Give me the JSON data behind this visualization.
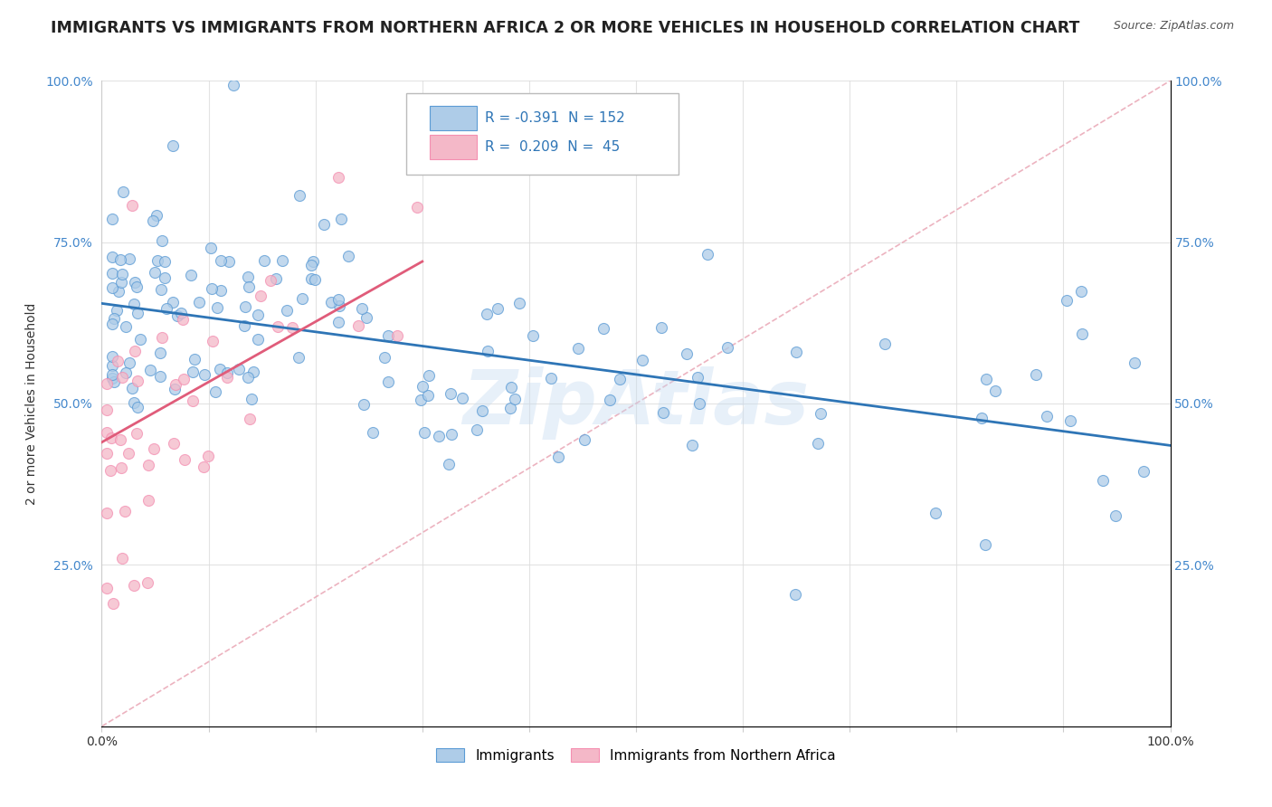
{
  "title": "IMMIGRANTS VS IMMIGRANTS FROM NORTHERN AFRICA 2 OR MORE VEHICLES IN HOUSEHOLD CORRELATION CHART",
  "source": "Source: ZipAtlas.com",
  "ylabel": "2 or more Vehicles in Household",
  "xlim": [
    0,
    1.0
  ],
  "ylim": [
    0,
    1.0
  ],
  "xticks": [
    0.0,
    0.1,
    0.2,
    0.3,
    0.4,
    0.5,
    0.6,
    0.7,
    0.8,
    0.9,
    1.0
  ],
  "xticklabels": [
    "0.0%",
    "",
    "",
    "",
    "",
    "",
    "",
    "",
    "",
    "",
    "100.0%"
  ],
  "yticks": [
    0.0,
    0.25,
    0.5,
    0.75,
    1.0
  ],
  "ylabels_left": [
    "",
    "25.0%",
    "50.0%",
    "75.0%",
    "100.0%"
  ],
  "ylabels_right": [
    "",
    "25.0%",
    "50.0%",
    "75.0%",
    "100.0%"
  ],
  "blue_R": -0.391,
  "blue_N": 152,
  "pink_R": 0.209,
  "pink_N": 45,
  "blue_color": "#aecce8",
  "blue_edge_color": "#5b9bd5",
  "blue_line_color": "#2e75b6",
  "pink_color": "#f4b8c8",
  "pink_edge_color": "#f48fb1",
  "pink_line_color": "#e05c7a",
  "legend_blue_label": "Immigrants",
  "legend_pink_label": "Immigrants from Northern Africa",
  "watermark": "ZipAtlas",
  "title_fontsize": 12.5,
  "source_fontsize": 9,
  "axis_label_fontsize": 10,
  "tick_fontsize": 10,
  "legend_fontsize": 11,
  "blue_trend_x0": 0.0,
  "blue_trend_y0": 0.655,
  "blue_trend_x1": 1.0,
  "blue_trend_y1": 0.435,
  "pink_trend_x0": 0.0,
  "pink_trend_y0": 0.44,
  "pink_trend_x1": 0.3,
  "pink_trend_y1": 0.72
}
